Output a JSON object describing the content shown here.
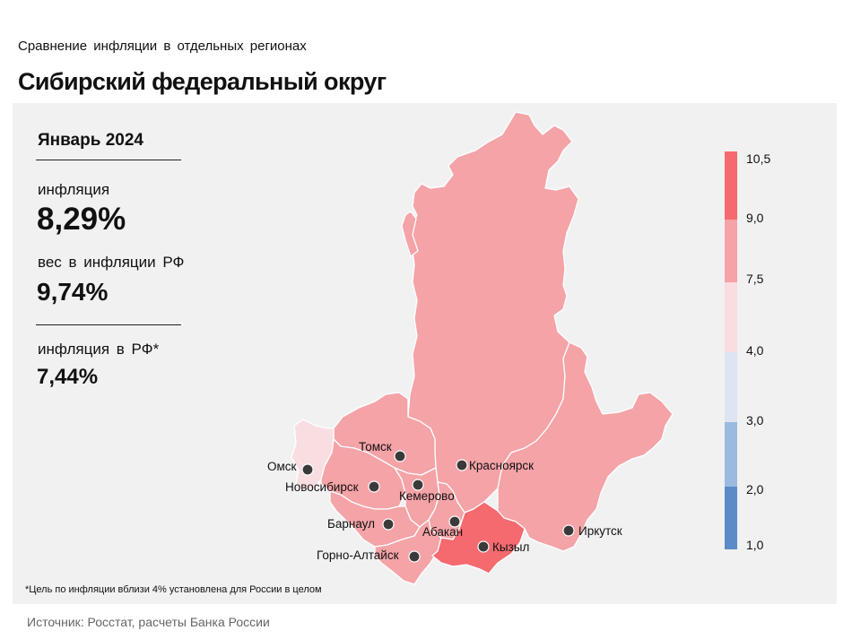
{
  "header": {
    "subtitle": "Сравнение  инфляции  в отдельных  регионах",
    "title": "Сибирский федеральный округ"
  },
  "summary": {
    "period": "Январь 2024",
    "inflation_label": "инфляция",
    "inflation_value": "8,29%",
    "weight_label": "вес в инфляции  РФ",
    "weight_value": "9,74%",
    "rf_label": "инфляция  в РФ*",
    "rf_value": "7,44%"
  },
  "footnote": "*Цель по инфляции вблизи 4% установлена для России в целом",
  "source": "Источник: Росстат, расчеты Банка России",
  "map": {
    "cities": [
      {
        "name": "Омск"
      },
      {
        "name": "Томск"
      },
      {
        "name": "Новосибирск"
      },
      {
        "name": "Кемерово"
      },
      {
        "name": "Красноярск"
      },
      {
        "name": "Барнаул"
      },
      {
        "name": "Абакан"
      },
      {
        "name": "Кызыл"
      },
      {
        "name": "Иркутск"
      },
      {
        "name": "Горно-Алтайск"
      }
    ],
    "colors": {
      "bin_9_0_10_5": "#f46a6e",
      "bin_7_5_9_0": "#f4a3a7",
      "bin_4_0_7_5": "#f8dde1",
      "bin_3_0_4_0": "#dde5f3",
      "bin_2_0_3_0": "#9bbadf",
      "bin_1_0_2_0": "#5b8cc8",
      "outline": "#ffffff"
    }
  },
  "legend": {
    "ticks": [
      "10,5",
      "9,0",
      "7,5",
      "4,0",
      "3,0",
      "2,0",
      "1,0"
    ]
  }
}
